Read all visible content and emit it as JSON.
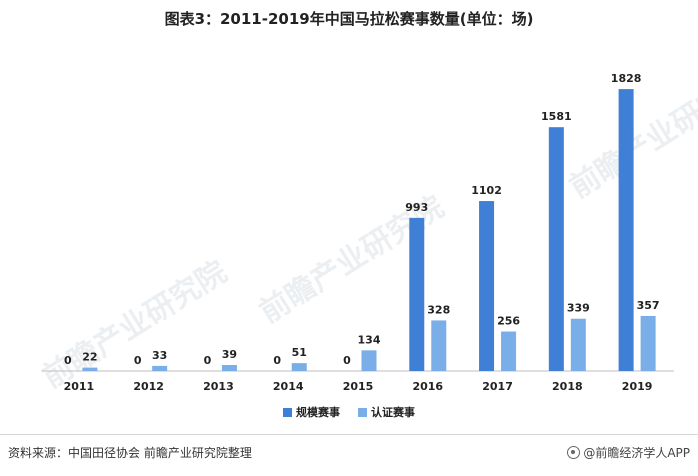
{
  "title": "图表3：2011-2019年中国马拉松赛事数量(单位：场)",
  "watermark_text": "前瞻产业研究院",
  "source": "资料来源：中国田径协会 前瞻产业研究院整理",
  "brand": "@前瞻经济学人APP",
  "colors": {
    "series1": "#3f7fd6",
    "series2": "#7aaee8",
    "axis": "#bfbfbf",
    "text": "#222222"
  },
  "chart_data": {
    "type": "bar",
    "title": "图表3：2011-2019年中国马拉松赛事数量(单位：场)",
    "xlabel": "",
    "ylabel": "",
    "categories": [
      "2011",
      "2012",
      "2013",
      "2014",
      "2015",
      "2016",
      "2017",
      "2018",
      "2019"
    ],
    "series": [
      {
        "name": "规模赛事",
        "values": [
          0,
          0,
          0,
          0,
          0,
          993,
          1102,
          1581,
          1828
        ]
      },
      {
        "name": "认证赛事",
        "values": [
          22,
          33,
          39,
          51,
          134,
          328,
          256,
          339,
          357
        ]
      }
    ],
    "ylim": [
      0,
      1900
    ],
    "grid": false,
    "legend_position": "bottom-center",
    "data_labels": true
  }
}
